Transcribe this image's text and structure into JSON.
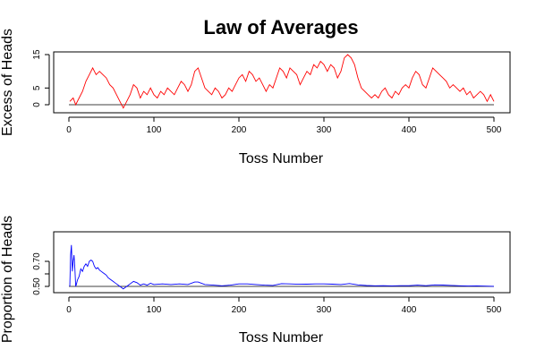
{
  "figure": {
    "title": "Law of Averages"
  },
  "chart_data": [
    {
      "type": "line",
      "title": "Law of Averages",
      "xlabel": "Toss Number",
      "ylabel": "Excess of Heads",
      "xlim": [
        0,
        500
      ],
      "ylim": [
        -1,
        15
      ],
      "x_ticks": [
        0,
        100,
        200,
        300,
        400,
        500
      ],
      "y_ticks": [
        0,
        5,
        15
      ],
      "reference_line": 0,
      "grid": false,
      "line_color": "#ff0000",
      "reference_color": "#000000",
      "points": [
        [
          1,
          1
        ],
        [
          5,
          2
        ],
        [
          8,
          0
        ],
        [
          12,
          2
        ],
        [
          16,
          4
        ],
        [
          20,
          7
        ],
        [
          24,
          9
        ],
        [
          28,
          11
        ],
        [
          32,
          9
        ],
        [
          36,
          10
        ],
        [
          40,
          9
        ],
        [
          44,
          8
        ],
        [
          48,
          6
        ],
        [
          52,
          5
        ],
        [
          56,
          3
        ],
        [
          60,
          1
        ],
        [
          64,
          -1
        ],
        [
          68,
          1
        ],
        [
          72,
          3
        ],
        [
          76,
          6
        ],
        [
          80,
          5
        ],
        [
          84,
          2
        ],
        [
          88,
          4
        ],
        [
          92,
          3
        ],
        [
          96,
          5
        ],
        [
          100,
          3
        ],
        [
          104,
          2
        ],
        [
          108,
          4
        ],
        [
          112,
          3
        ],
        [
          116,
          5
        ],
        [
          120,
          4
        ],
        [
          124,
          3
        ],
        [
          128,
          5
        ],
        [
          132,
          7
        ],
        [
          136,
          6
        ],
        [
          140,
          4
        ],
        [
          144,
          6
        ],
        [
          148,
          10
        ],
        [
          152,
          11
        ],
        [
          156,
          8
        ],
        [
          160,
          5
        ],
        [
          164,
          4
        ],
        [
          168,
          3
        ],
        [
          172,
          5
        ],
        [
          176,
          4
        ],
        [
          180,
          2
        ],
        [
          184,
          3
        ],
        [
          188,
          5
        ],
        [
          192,
          4
        ],
        [
          196,
          6
        ],
        [
          200,
          8
        ],
        [
          204,
          9
        ],
        [
          208,
          7
        ],
        [
          212,
          10
        ],
        [
          216,
          9
        ],
        [
          220,
          7
        ],
        [
          224,
          8
        ],
        [
          228,
          6
        ],
        [
          232,
          4
        ],
        [
          236,
          6
        ],
        [
          240,
          5
        ],
        [
          244,
          8
        ],
        [
          248,
          11
        ],
        [
          252,
          10
        ],
        [
          256,
          8
        ],
        [
          260,
          11
        ],
        [
          264,
          10
        ],
        [
          268,
          9
        ],
        [
          272,
          6
        ],
        [
          276,
          8
        ],
        [
          280,
          10
        ],
        [
          284,
          9
        ],
        [
          288,
          12
        ],
        [
          292,
          11
        ],
        [
          296,
          13
        ],
        [
          300,
          12
        ],
        [
          304,
          10
        ],
        [
          308,
          12
        ],
        [
          312,
          11
        ],
        [
          316,
          8
        ],
        [
          320,
          10
        ],
        [
          324,
          14
        ],
        [
          328,
          15
        ],
        [
          332,
          14
        ],
        [
          336,
          12
        ],
        [
          340,
          8
        ],
        [
          344,
          5
        ],
        [
          348,
          4
        ],
        [
          352,
          3
        ],
        [
          356,
          2
        ],
        [
          360,
          3
        ],
        [
          364,
          2
        ],
        [
          368,
          4
        ],
        [
          372,
          5
        ],
        [
          376,
          3
        ],
        [
          380,
          2
        ],
        [
          384,
          4
        ],
        [
          388,
          3
        ],
        [
          392,
          5
        ],
        [
          396,
          6
        ],
        [
          400,
          5
        ],
        [
          404,
          8
        ],
        [
          408,
          10
        ],
        [
          412,
          9
        ],
        [
          416,
          6
        ],
        [
          420,
          5
        ],
        [
          424,
          8
        ],
        [
          428,
          11
        ],
        [
          432,
          10
        ],
        [
          436,
          9
        ],
        [
          440,
          8
        ],
        [
          444,
          7
        ],
        [
          448,
          5
        ],
        [
          452,
          6
        ],
        [
          456,
          5
        ],
        [
          460,
          4
        ],
        [
          464,
          5
        ],
        [
          468,
          3
        ],
        [
          472,
          4
        ],
        [
          476,
          2
        ],
        [
          480,
          3
        ],
        [
          484,
          4
        ],
        [
          488,
          3
        ],
        [
          492,
          1
        ],
        [
          496,
          3
        ],
        [
          500,
          1
        ]
      ]
    },
    {
      "type": "line",
      "title": "",
      "xlabel": "Toss Number",
      "ylabel": "Proportion of Heads",
      "xlim": [
        0,
        500
      ],
      "ylim": [
        0.48,
        0.85
      ],
      "x_ticks": [
        0,
        100,
        200,
        300,
        400,
        500
      ],
      "y_ticks": [
        0.5,
        0.6,
        0.7
      ],
      "y_tick_labels": [
        "0.50",
        "",
        "0.70"
      ],
      "reference_line": 0.5,
      "grid": false,
      "line_color": "#0000ff",
      "reference_color": "#000000",
      "points": [
        [
          1,
          0.5
        ],
        [
          2,
          0.75
        ],
        [
          3,
          0.83
        ],
        [
          4,
          0.62
        ],
        [
          5,
          0.7
        ],
        [
          6,
          0.75
        ],
        [
          7,
          0.64
        ],
        [
          8,
          0.5
        ],
        [
          9,
          0.52
        ],
        [
          10,
          0.55
        ],
        [
          12,
          0.58
        ],
        [
          14,
          0.64
        ],
        [
          16,
          0.62
        ],
        [
          18,
          0.66
        ],
        [
          20,
          0.68
        ],
        [
          22,
          0.66
        ],
        [
          24,
          0.7
        ],
        [
          26,
          0.71
        ],
        [
          28,
          0.7
        ],
        [
          30,
          0.66
        ],
        [
          32,
          0.64
        ],
        [
          34,
          0.65
        ],
        [
          36,
          0.63
        ],
        [
          38,
          0.62
        ],
        [
          40,
          0.61
        ],
        [
          42,
          0.6
        ],
        [
          44,
          0.59
        ],
        [
          46,
          0.57
        ],
        [
          48,
          0.56
        ],
        [
          50,
          0.55
        ],
        [
          52,
          0.54
        ],
        [
          54,
          0.53
        ],
        [
          56,
          0.52
        ],
        [
          58,
          0.51
        ],
        [
          60,
          0.5
        ],
        [
          62,
          0.49
        ],
        [
          64,
          0.48
        ],
        [
          66,
          0.49
        ],
        [
          68,
          0.5
        ],
        [
          70,
          0.51
        ],
        [
          72,
          0.52
        ],
        [
          76,
          0.54
        ],
        [
          80,
          0.53
        ],
        [
          84,
          0.51
        ],
        [
          88,
          0.52
        ],
        [
          92,
          0.51
        ],
        [
          96,
          0.525
        ],
        [
          100,
          0.515
        ],
        [
          110,
          0.52
        ],
        [
          120,
          0.515
        ],
        [
          130,
          0.52
        ],
        [
          140,
          0.515
        ],
        [
          148,
          0.535
        ],
        [
          152,
          0.535
        ],
        [
          160,
          0.515
        ],
        [
          170,
          0.51
        ],
        [
          180,
          0.505
        ],
        [
          190,
          0.51
        ],
        [
          200,
          0.52
        ],
        [
          210,
          0.52
        ],
        [
          220,
          0.515
        ],
        [
          230,
          0.51
        ],
        [
          240,
          0.508
        ],
        [
          250,
          0.522
        ],
        [
          260,
          0.52
        ],
        [
          270,
          0.517
        ],
        [
          280,
          0.518
        ],
        [
          290,
          0.52
        ],
        [
          300,
          0.52
        ],
        [
          310,
          0.518
        ],
        [
          320,
          0.515
        ],
        [
          330,
          0.523
        ],
        [
          340,
          0.512
        ],
        [
          350,
          0.507
        ],
        [
          360,
          0.505
        ],
        [
          370,
          0.506
        ],
        [
          380,
          0.504
        ],
        [
          390,
          0.506
        ],
        [
          400,
          0.506
        ],
        [
          410,
          0.51
        ],
        [
          420,
          0.506
        ],
        [
          430,
          0.512
        ],
        [
          440,
          0.511
        ],
        [
          450,
          0.508
        ],
        [
          460,
          0.505
        ],
        [
          470,
          0.503
        ],
        [
          480,
          0.504
        ],
        [
          490,
          0.502
        ],
        [
          500,
          0.501
        ]
      ]
    }
  ]
}
